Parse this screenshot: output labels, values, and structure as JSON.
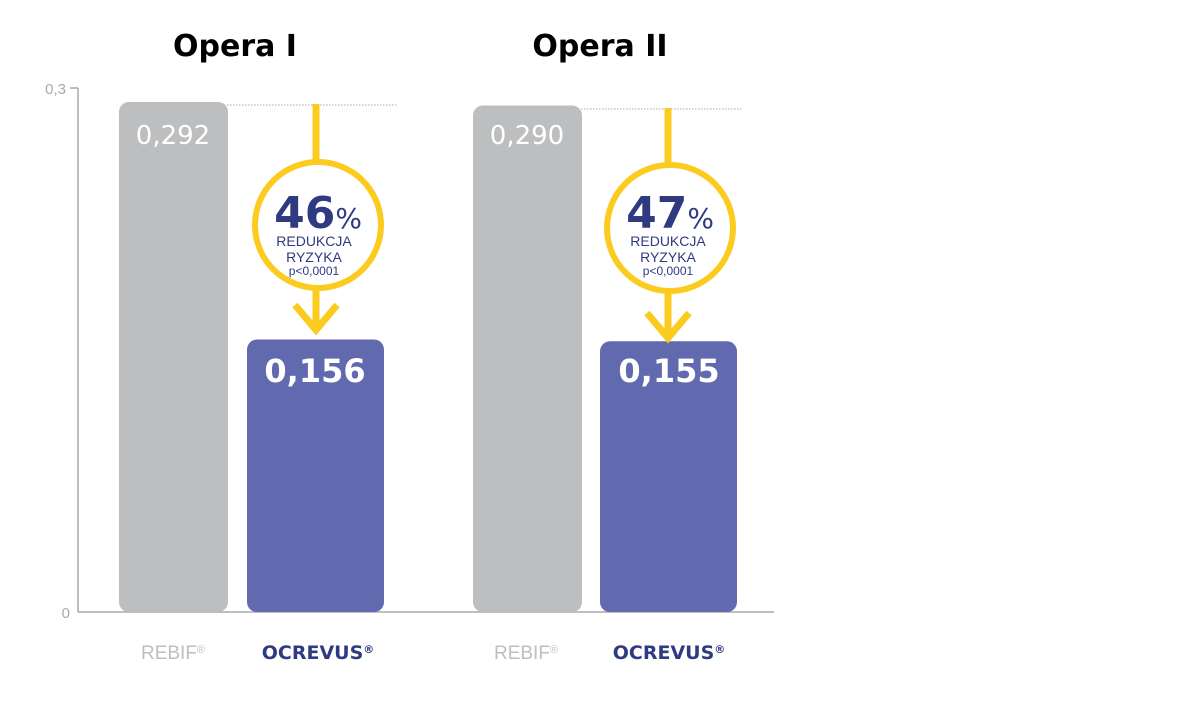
{
  "colors": {
    "rebif": "#bcbec0",
    "ocrevus": "#626aaf",
    "arrow": "#fccb20",
    "text_navy": "#2f3a80",
    "axis": "#a7a9ac"
  },
  "chart_data": [
    {
      "type": "bar",
      "title": "Opera I",
      "categories": [
        "REBIF®",
        "OCREVUS®"
      ],
      "values": [
        0.292,
        0.156
      ],
      "value_labels": [
        "0,292",
        "0,156"
      ],
      "ylim": [
        0,
        0.3
      ],
      "annotation": {
        "percent": "46",
        "percent_sign": "%",
        "line1": "REDUKCJA",
        "line2": "RYZYKA",
        "pvalue": "p<0,0001"
      }
    },
    {
      "type": "bar",
      "title": "Opera II",
      "categories": [
        "REBIF®",
        "OCREVUS®"
      ],
      "values": [
        0.29,
        0.155
      ],
      "value_labels": [
        "0,290",
        "0,155"
      ],
      "ylim": [
        0,
        0.3
      ],
      "annotation": {
        "percent": "47",
        "percent_sign": "%",
        "line1": "REDUKCJA",
        "line2": "RYZYKA",
        "pvalue": "p<0,0001"
      }
    }
  ],
  "axis": {
    "y_ticks": [
      "0,3",
      "0"
    ]
  },
  "x_labels": {
    "rebif_name": "REBIF",
    "ocrevus_name": "OCREVUS",
    "reg_mark": "®"
  }
}
